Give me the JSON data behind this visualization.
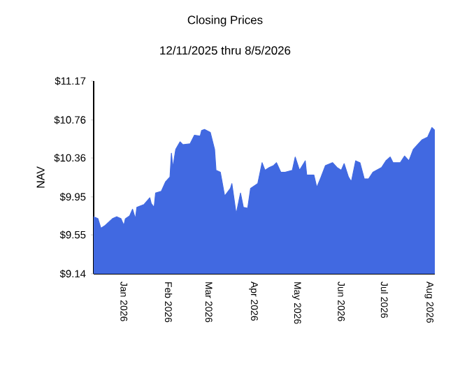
{
  "chart_data": {
    "type": "area",
    "title": "Closing Prices",
    "subtitle": "12/11/2025 thru 8/5/2026",
    "ylabel": "NAV",
    "x": [
      "2025-12-11",
      "2025-12-14",
      "2025-12-16",
      "2025-12-19",
      "2025-12-24",
      "2025-12-27",
      "2025-12-30",
      "2026-01-01",
      "2026-01-02",
      "2026-01-05",
      "2026-01-07",
      "2026-01-09",
      "2026-01-10",
      "2026-01-15",
      "2026-01-19",
      "2026-01-20",
      "2026-01-22",
      "2026-01-23",
      "2026-01-27",
      "2026-01-30",
      "2026-02-02",
      "2026-02-03",
      "2026-02-04",
      "2026-02-06",
      "2026-02-09",
      "2026-02-11",
      "2026-02-16",
      "2026-02-19",
      "2026-02-23",
      "2026-02-24",
      "2026-02-26",
      "2026-03-02",
      "2026-03-05",
      "2026-03-06",
      "2026-03-09",
      "2026-03-12",
      "2026-03-16",
      "2026-03-17",
      "2026-03-20",
      "2026-03-23",
      "2026-03-25",
      "2026-03-28",
      "2026-03-30",
      "2026-04-04",
      "2026-04-07",
      "2026-04-09",
      "2026-04-12",
      "2026-04-15",
      "2026-04-17",
      "2026-04-20",
      "2026-04-23",
      "2026-04-28",
      "2026-04-30",
      "2026-05-03",
      "2026-05-07",
      "2026-05-08",
      "2026-05-13",
      "2026-05-15",
      "2026-05-18",
      "2026-05-21",
      "2026-05-26",
      "2026-05-29",
      "2026-06-01",
      "2026-06-03",
      "2026-06-06",
      "2026-06-08",
      "2026-06-11",
      "2026-06-14",
      "2026-06-17",
      "2026-06-20",
      "2026-06-23",
      "2026-06-29",
      "2026-07-02",
      "2026-07-05",
      "2026-07-07",
      "2026-07-12",
      "2026-07-15",
      "2026-07-18",
      "2026-07-21",
      "2026-07-24",
      "2026-07-27",
      "2026-07-31",
      "2026-08-03",
      "2026-08-05"
    ],
    "series": [
      {
        "color": "#4169e1",
        "values": [
          9.74,
          9.72,
          9.62,
          9.65,
          9.72,
          9.74,
          9.72,
          9.65,
          9.72,
          9.75,
          9.82,
          9.72,
          9.84,
          9.87,
          9.94,
          9.88,
          9.84,
          9.99,
          10.01,
          10.11,
          10.16,
          10.41,
          10.26,
          10.45,
          10.53,
          10.5,
          10.51,
          10.6,
          10.59,
          10.65,
          10.66,
          10.63,
          10.45,
          10.23,
          10.21,
          9.96,
          10.04,
          10.09,
          9.77,
          9.99,
          9.84,
          9.83,
          10.04,
          10.09,
          10.31,
          10.23,
          10.26,
          10.28,
          10.31,
          10.21,
          10.21,
          10.23,
          10.37,
          10.23,
          10.33,
          10.18,
          10.18,
          10.05,
          10.16,
          10.28,
          10.31,
          10.26,
          10.23,
          10.3,
          10.16,
          10.11,
          10.33,
          10.31,
          10.14,
          10.14,
          10.21,
          10.26,
          10.33,
          10.37,
          10.31,
          10.31,
          10.38,
          10.33,
          10.45,
          10.5,
          10.55,
          10.58,
          10.68,
          10.65
        ]
      }
    ],
    "xlim": [
      "2025-12-11",
      "2026-08-05"
    ],
    "xticks": [
      {
        "value": "2026-01-01",
        "label": "Jan  2026"
      },
      {
        "value": "2026-02-01",
        "label": "Feb  2026"
      },
      {
        "value": "2026-03-01",
        "label": "Mar  2026"
      },
      {
        "value": "2026-04-01",
        "label": "Apr  2026"
      },
      {
        "value": "2026-05-01",
        "label": "May  2026"
      },
      {
        "value": "2026-06-01",
        "label": "Jun  2026"
      },
      {
        "value": "2026-07-01",
        "label": "Jul  2026"
      },
      {
        "value": "2026-08-01",
        "label": "Aug  2026"
      }
    ],
    "ylim": [
      9.14,
      11.17
    ],
    "yticks": [
      {
        "value": 9.14,
        "label": "$9.14"
      },
      {
        "value": 9.55,
        "label": "$9.55"
      },
      {
        "value": 9.95,
        "label": "$9.95"
      },
      {
        "value": 10.36,
        "label": "$10.36"
      },
      {
        "value": 10.76,
        "label": "$10.76"
      },
      {
        "value": 11.17,
        "label": "$11.17"
      }
    ],
    "grid": false
  }
}
